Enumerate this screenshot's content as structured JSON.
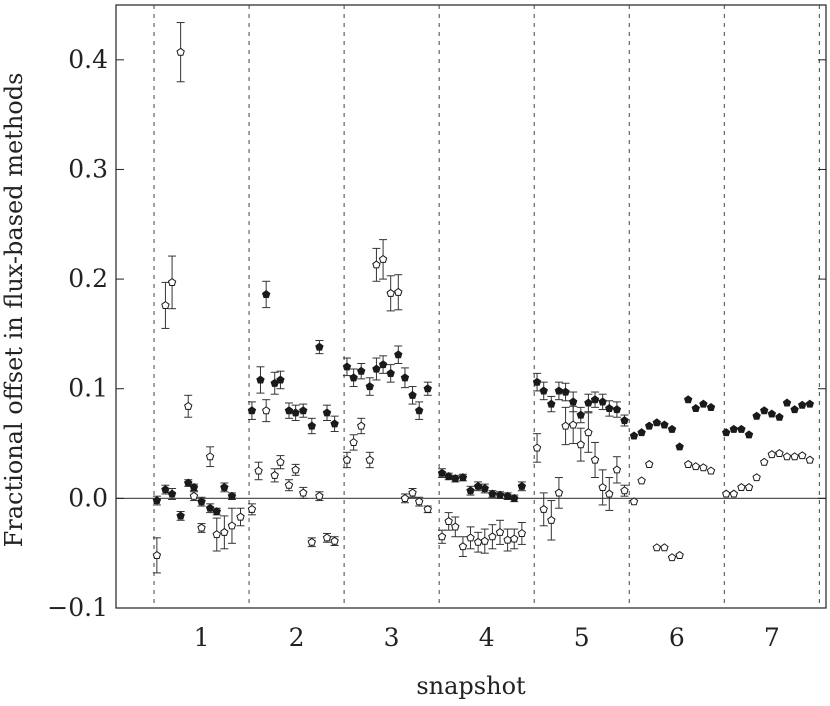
{
  "chart_data": {
    "type": "scatter",
    "title": "",
    "xlabel": "snapshot",
    "ylabel": "Fractional offset in flux-based methods",
    "ylim": [
      -0.1,
      0.45
    ],
    "yticks": [
      -0.1,
      0.0,
      0.1,
      0.2,
      0.3,
      0.4
    ],
    "ytick_labels": [
      "−0.1",
      "0.0",
      "0.1",
      "0.2",
      "0.3",
      "0.4"
    ],
    "xlim": [
      0.1,
      7.57
    ],
    "xticks": [
      1,
      2,
      3,
      4,
      5,
      6,
      7
    ],
    "xtick_labels": [
      "1",
      "2",
      "3",
      "4",
      "5",
      "6",
      "7"
    ],
    "snapshot_boundaries": [
      0.5,
      1.5,
      2.5,
      3.5,
      4.5,
      5.5,
      6.5,
      7.5
    ],
    "reference_line_y": 0.0,
    "grid": false,
    "legend": "none",
    "series": [
      {
        "marker": "filled-pentagon",
        "points": [
          {
            "x": 0.53,
            "y": -0.002,
            "err": 0.004
          },
          {
            "x": 0.62,
            "y": 0.008,
            "err": 0.004
          },
          {
            "x": 0.69,
            "y": 0.004,
            "err": 0.005
          },
          {
            "x": 0.78,
            "y": -0.016,
            "err": 0.004
          },
          {
            "x": 0.86,
            "y": 0.014,
            "err": 0.003
          },
          {
            "x": 0.92,
            "y": 0.01,
            "err": 0.003
          },
          {
            "x": 1.0,
            "y": -0.003,
            "err": 0.004
          },
          {
            "x": 1.09,
            "y": -0.009,
            "err": 0.004
          },
          {
            "x": 1.16,
            "y": -0.012,
            "err": 0.003
          },
          {
            "x": 1.24,
            "y": 0.01,
            "err": 0.004
          },
          {
            "x": 1.32,
            "y": 0.002,
            "err": 0.003
          },
          {
            "x": 1.53,
            "y": 0.08,
            "err": 0.008
          },
          {
            "x": 1.62,
            "y": 0.108,
            "err": 0.012
          },
          {
            "x": 1.68,
            "y": 0.186,
            "err": 0.012
          },
          {
            "x": 1.77,
            "y": 0.105,
            "err": 0.01
          },
          {
            "x": 1.83,
            "y": 0.108,
            "err": 0.008
          },
          {
            "x": 1.92,
            "y": 0.08,
            "err": 0.007
          },
          {
            "x": 1.99,
            "y": 0.078,
            "err": 0.007
          },
          {
            "x": 2.07,
            "y": 0.08,
            "err": 0.006
          },
          {
            "x": 2.16,
            "y": 0.066,
            "err": 0.007
          },
          {
            "x": 2.24,
            "y": 0.138,
            "err": 0.006
          },
          {
            "x": 2.32,
            "y": 0.078,
            "err": 0.007
          },
          {
            "x": 2.4,
            "y": 0.068,
            "err": 0.007
          },
          {
            "x": 2.53,
            "y": 0.12,
            "err": 0.008
          },
          {
            "x": 2.6,
            "y": 0.11,
            "err": 0.008
          },
          {
            "x": 2.68,
            "y": 0.116,
            "err": 0.007
          },
          {
            "x": 2.77,
            "y": 0.102,
            "err": 0.008
          },
          {
            "x": 2.84,
            "y": 0.118,
            "err": 0.01
          },
          {
            "x": 2.91,
            "y": 0.122,
            "err": 0.008
          },
          {
            "x": 2.99,
            "y": 0.114,
            "err": 0.008
          },
          {
            "x": 3.07,
            "y": 0.131,
            "err": 0.008
          },
          {
            "x": 3.14,
            "y": 0.11,
            "err": 0.009
          },
          {
            "x": 3.22,
            "y": 0.094,
            "err": 0.008
          },
          {
            "x": 3.29,
            "y": 0.08,
            "err": 0.008
          },
          {
            "x": 3.38,
            "y": 0.1,
            "err": 0.006
          },
          {
            "x": 3.53,
            "y": 0.023,
            "err": 0.004
          },
          {
            "x": 3.6,
            "y": 0.02,
            "err": 0.003
          },
          {
            "x": 3.67,
            "y": 0.018,
            "err": 0.003
          },
          {
            "x": 3.75,
            "y": 0.019,
            "err": 0.003
          },
          {
            "x": 3.83,
            "y": 0.007,
            "err": 0.004
          },
          {
            "x": 3.91,
            "y": 0.011,
            "err": 0.004
          },
          {
            "x": 3.98,
            "y": 0.009,
            "err": 0.004
          },
          {
            "x": 4.06,
            "y": 0.004,
            "err": 0.003
          },
          {
            "x": 4.14,
            "y": 0.003,
            "err": 0.003
          },
          {
            "x": 4.22,
            "y": 0.002,
            "err": 0.003
          },
          {
            "x": 4.29,
            "y": 0.0,
            "err": 0.003
          },
          {
            "x": 4.37,
            "y": 0.011,
            "err": 0.004
          },
          {
            "x": 4.53,
            "y": 0.106,
            "err": 0.008
          },
          {
            "x": 4.6,
            "y": 0.098,
            "err": 0.008
          },
          {
            "x": 4.68,
            "y": 0.086,
            "err": 0.007
          },
          {
            "x": 4.76,
            "y": 0.098,
            "err": 0.008
          },
          {
            "x": 4.83,
            "y": 0.097,
            "err": 0.008
          },
          {
            "x": 4.91,
            "y": 0.088,
            "err": 0.009
          },
          {
            "x": 4.99,
            "y": 0.076,
            "err": 0.007
          },
          {
            "x": 5.07,
            "y": 0.087,
            "err": 0.008
          },
          {
            "x": 5.14,
            "y": 0.09,
            "err": 0.007
          },
          {
            "x": 5.22,
            "y": 0.088,
            "err": 0.007
          },
          {
            "x": 5.29,
            "y": 0.082,
            "err": 0.007
          },
          {
            "x": 5.37,
            "y": 0.081,
            "err": 0.007
          },
          {
            "x": 5.45,
            "y": 0.071,
            "err": 0.005
          },
          {
            "x": 5.55,
            "y": 0.057,
            "err": 0
          },
          {
            "x": 5.63,
            "y": 0.06,
            "err": 0
          },
          {
            "x": 5.71,
            "y": 0.066,
            "err": 0
          },
          {
            "x": 5.79,
            "y": 0.069,
            "err": 0
          },
          {
            "x": 5.87,
            "y": 0.067,
            "err": 0
          },
          {
            "x": 5.95,
            "y": 0.063,
            "err": 0
          },
          {
            "x": 6.03,
            "y": 0.047,
            "err": 0
          },
          {
            "x": 6.12,
            "y": 0.09,
            "err": 0
          },
          {
            "x": 6.2,
            "y": 0.082,
            "err": 0
          },
          {
            "x": 6.28,
            "y": 0.086,
            "err": 0
          },
          {
            "x": 6.36,
            "y": 0.083,
            "err": 0
          },
          {
            "x": 6.52,
            "y": 0.06,
            "err": 0
          },
          {
            "x": 6.6,
            "y": 0.063,
            "err": 0
          },
          {
            "x": 6.68,
            "y": 0.063,
            "err": 0
          },
          {
            "x": 6.76,
            "y": 0.058,
            "err": 0
          },
          {
            "x": 6.84,
            "y": 0.075,
            "err": 0
          },
          {
            "x": 6.92,
            "y": 0.08,
            "err": 0
          },
          {
            "x": 7.0,
            "y": 0.077,
            "err": 0
          },
          {
            "x": 7.08,
            "y": 0.074,
            "err": 0
          },
          {
            "x": 7.16,
            "y": 0.087,
            "err": 0
          },
          {
            "x": 7.24,
            "y": 0.081,
            "err": 0
          },
          {
            "x": 7.32,
            "y": 0.085,
            "err": 0
          },
          {
            "x": 7.4,
            "y": 0.086,
            "err": 0
          }
        ]
      },
      {
        "marker": "open-pentagon",
        "points": [
          {
            "x": 0.53,
            "y": -0.052,
            "err": 0.016
          },
          {
            "x": 0.62,
            "y": 0.176,
            "err": 0.021
          },
          {
            "x": 0.69,
            "y": 0.197,
            "err": 0.024
          },
          {
            "x": 0.78,
            "y": 0.407,
            "err": 0.027
          },
          {
            "x": 0.86,
            "y": 0.084,
            "err": 0.01
          },
          {
            "x": 0.92,
            "y": 0.002,
            "err": 0.004
          },
          {
            "x": 1.0,
            "y": -0.027,
            "err": 0.004
          },
          {
            "x": 1.09,
            "y": 0.038,
            "err": 0.009
          },
          {
            "x": 1.16,
            "y": -0.033,
            "err": 0.015
          },
          {
            "x": 1.24,
            "y": -0.031,
            "err": 0.015
          },
          {
            "x": 1.32,
            "y": -0.025,
            "err": 0.016
          },
          {
            "x": 1.41,
            "y": -0.017,
            "err": 0.008
          },
          {
            "x": 1.53,
            "y": -0.01,
            "err": 0.005
          },
          {
            "x": 1.6,
            "y": 0.025,
            "err": 0.008
          },
          {
            "x": 1.68,
            "y": 0.08,
            "err": 0.01
          },
          {
            "x": 1.77,
            "y": 0.021,
            "err": 0.006
          },
          {
            "x": 1.83,
            "y": 0.033,
            "err": 0.006
          },
          {
            "x": 1.92,
            "y": 0.012,
            "err": 0.005
          },
          {
            "x": 1.99,
            "y": 0.026,
            "err": 0.005
          },
          {
            "x": 2.07,
            "y": 0.005,
            "err": 0.005
          },
          {
            "x": 2.16,
            "y": -0.04,
            "err": 0.004
          },
          {
            "x": 2.24,
            "y": 0.002,
            "err": 0.004
          },
          {
            "x": 2.32,
            "y": -0.036,
            "err": 0.004
          },
          {
            "x": 2.4,
            "y": -0.039,
            "err": 0.004
          },
          {
            "x": 2.53,
            "y": 0.035,
            "err": 0.007
          },
          {
            "x": 2.6,
            "y": 0.051,
            "err": 0.007
          },
          {
            "x": 2.68,
            "y": 0.066,
            "err": 0.007
          },
          {
            "x": 2.77,
            "y": 0.035,
            "err": 0.007
          },
          {
            "x": 2.84,
            "y": 0.213,
            "err": 0.015
          },
          {
            "x": 2.91,
            "y": 0.218,
            "err": 0.018
          },
          {
            "x": 2.99,
            "y": 0.187,
            "err": 0.016
          },
          {
            "x": 3.07,
            "y": 0.188,
            "err": 0.016
          },
          {
            "x": 3.14,
            "y": 0.0,
            "err": 0.004
          },
          {
            "x": 3.22,
            "y": 0.005,
            "err": 0.004
          },
          {
            "x": 3.29,
            "y": -0.003,
            "err": 0.004
          },
          {
            "x": 3.38,
            "y": -0.01,
            "err": 0.003
          },
          {
            "x": 3.53,
            "y": -0.035,
            "err": 0.006
          },
          {
            "x": 3.6,
            "y": -0.021,
            "err": 0.008
          },
          {
            "x": 3.67,
            "y": -0.026,
            "err": 0.009
          },
          {
            "x": 3.75,
            "y": -0.044,
            "err": 0.009
          },
          {
            "x": 3.83,
            "y": -0.036,
            "err": 0.01
          },
          {
            "x": 3.91,
            "y": -0.04,
            "err": 0.009
          },
          {
            "x": 3.98,
            "y": -0.039,
            "err": 0.011
          },
          {
            "x": 4.06,
            "y": -0.035,
            "err": 0.011
          },
          {
            "x": 4.14,
            "y": -0.031,
            "err": 0.011
          },
          {
            "x": 4.22,
            "y": -0.038,
            "err": 0.01
          },
          {
            "x": 4.29,
            "y": -0.037,
            "err": 0.009
          },
          {
            "x": 4.37,
            "y": -0.032,
            "err": 0.01
          },
          {
            "x": 4.53,
            "y": 0.046,
            "err": 0.013
          },
          {
            "x": 4.6,
            "y": -0.01,
            "err": 0.015
          },
          {
            "x": 4.68,
            "y": -0.02,
            "err": 0.018
          },
          {
            "x": 4.76,
            "y": 0.005,
            "err": 0.014
          },
          {
            "x": 4.83,
            "y": 0.066,
            "err": 0.017
          },
          {
            "x": 4.91,
            "y": 0.067,
            "err": 0.017
          },
          {
            "x": 4.99,
            "y": 0.049,
            "err": 0.015
          },
          {
            "x": 5.07,
            "y": 0.06,
            "err": 0.018
          },
          {
            "x": 5.14,
            "y": 0.035,
            "err": 0.016
          },
          {
            "x": 5.22,
            "y": 0.01,
            "err": 0.016
          },
          {
            "x": 5.29,
            "y": 0.004,
            "err": 0.015
          },
          {
            "x": 5.37,
            "y": 0.026,
            "err": 0.012
          },
          {
            "x": 5.45,
            "y": 0.007,
            "err": 0.005
          },
          {
            "x": 5.55,
            "y": -0.003,
            "err": 0
          },
          {
            "x": 5.63,
            "y": 0.016,
            "err": 0
          },
          {
            "x": 5.71,
            "y": 0.031,
            "err": 0
          },
          {
            "x": 5.79,
            "y": -0.045,
            "err": 0
          },
          {
            "x": 5.87,
            "y": -0.045,
            "err": 0
          },
          {
            "x": 5.95,
            "y": -0.054,
            "err": 0
          },
          {
            "x": 6.03,
            "y": -0.052,
            "err": 0
          },
          {
            "x": 6.12,
            "y": 0.031,
            "err": 0
          },
          {
            "x": 6.2,
            "y": 0.029,
            "err": 0
          },
          {
            "x": 6.28,
            "y": 0.028,
            "err": 0
          },
          {
            "x": 6.36,
            "y": 0.025,
            "err": 0
          },
          {
            "x": 6.52,
            "y": 0.004,
            "err": 0
          },
          {
            "x": 6.6,
            "y": 0.004,
            "err": 0
          },
          {
            "x": 6.68,
            "y": 0.01,
            "err": 0
          },
          {
            "x": 6.76,
            "y": 0.01,
            "err": 0
          },
          {
            "x": 6.84,
            "y": 0.019,
            "err": 0
          },
          {
            "x": 6.92,
            "y": 0.033,
            "err": 0
          },
          {
            "x": 7.0,
            "y": 0.04,
            "err": 0
          },
          {
            "x": 7.08,
            "y": 0.041,
            "err": 0
          },
          {
            "x": 7.16,
            "y": 0.038,
            "err": 0
          },
          {
            "x": 7.24,
            "y": 0.038,
            "err": 0
          },
          {
            "x": 7.32,
            "y": 0.039,
            "err": 0
          },
          {
            "x": 7.4,
            "y": 0.035,
            "err": 0
          }
        ]
      }
    ]
  }
}
